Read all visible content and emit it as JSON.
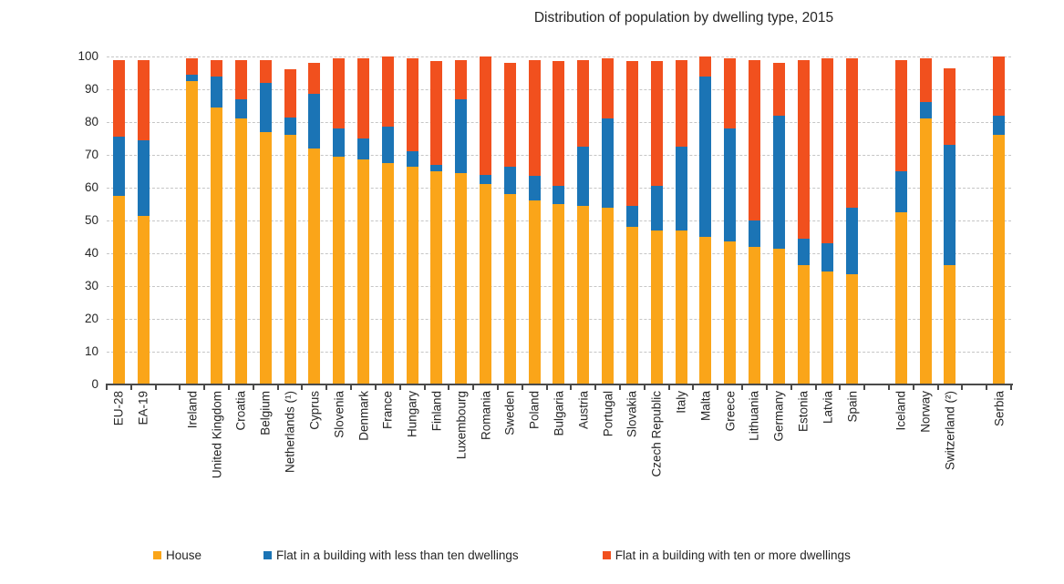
{
  "chart_data": {
    "type": "bar",
    "stacked": true,
    "title": "Distribution of population by dwelling type, 2015",
    "ylim": [
      0,
      100
    ],
    "yticks": [
      0,
      10,
      20,
      30,
      40,
      50,
      60,
      70,
      80,
      90,
      100
    ],
    "grid": "horizontal-dashed",
    "legend_position": "bottom",
    "unit": "% of population",
    "series_meta": [
      {
        "name": "House",
        "color": "#FAA519"
      },
      {
        "name": "Flat in a building with less than ten dwellings",
        "color": "#1B74B5"
      },
      {
        "name": "Flat in a building with ten or more dwellings",
        "color": "#F1501E"
      }
    ],
    "bars": [
      {
        "label": "EU-28",
        "gap_before": false,
        "values": [
          57.5,
          18.0,
          23.5
        ]
      },
      {
        "label": "EA-19",
        "gap_before": false,
        "values": [
          51.5,
          23.0,
          24.5
        ]
      },
      {
        "label": "Ireland",
        "gap_before": true,
        "values": [
          92.5,
          2.0,
          5.0
        ]
      },
      {
        "label": "United Kingdom",
        "gap_before": false,
        "values": [
          84.5,
          9.5,
          5.0
        ]
      },
      {
        "label": "Croatia",
        "gap_before": false,
        "values": [
          81.0,
          6.0,
          12.0
        ]
      },
      {
        "label": "Belgium",
        "gap_before": false,
        "values": [
          77.0,
          15.0,
          7.0
        ]
      },
      {
        "label": "Netherlands (¹)",
        "gap_before": false,
        "values": [
          76.0,
          5.5,
          14.5
        ]
      },
      {
        "label": "Cyprus",
        "gap_before": false,
        "values": [
          72.0,
          16.5,
          9.5
        ]
      },
      {
        "label": "Slovenia",
        "gap_before": false,
        "values": [
          69.5,
          8.5,
          21.5
        ]
      },
      {
        "label": "Denmark",
        "gap_before": false,
        "values": [
          68.5,
          6.5,
          24.5
        ]
      },
      {
        "label": "France",
        "gap_before": false,
        "values": [
          67.5,
          11.0,
          21.5
        ]
      },
      {
        "label": "Hungary",
        "gap_before": false,
        "values": [
          66.5,
          4.5,
          28.5
        ]
      },
      {
        "label": "Finland",
        "gap_before": false,
        "values": [
          65.0,
          2.0,
          31.5
        ]
      },
      {
        "label": "Luxembourg",
        "gap_before": false,
        "values": [
          64.5,
          22.5,
          12.0
        ]
      },
      {
        "label": "Romania",
        "gap_before": false,
        "values": [
          61.0,
          3.0,
          36.0
        ]
      },
      {
        "label": "Sweden",
        "gap_before": false,
        "values": [
          58.0,
          8.5,
          31.5
        ]
      },
      {
        "label": "Poland",
        "gap_before": false,
        "values": [
          56.0,
          7.5,
          35.5
        ]
      },
      {
        "label": "Bulgaria",
        "gap_before": false,
        "values": [
          55.0,
          5.5,
          38.0
        ]
      },
      {
        "label": "Austria",
        "gap_before": false,
        "values": [
          54.5,
          18.0,
          26.5
        ]
      },
      {
        "label": "Portugal",
        "gap_before": false,
        "values": [
          54.0,
          27.0,
          18.5
        ]
      },
      {
        "label": "Slovakia",
        "gap_before": false,
        "values": [
          48.0,
          6.5,
          44.0
        ]
      },
      {
        "label": "Czech Republic",
        "gap_before": false,
        "values": [
          47.0,
          13.5,
          38.0
        ]
      },
      {
        "label": "Italy",
        "gap_before": false,
        "values": [
          47.0,
          25.5,
          26.5
        ]
      },
      {
        "label": "Malta",
        "gap_before": false,
        "values": [
          45.0,
          49.0,
          6.0
        ]
      },
      {
        "label": "Greece",
        "gap_before": false,
        "values": [
          43.5,
          34.5,
          21.5
        ]
      },
      {
        "label": "Lithuania",
        "gap_before": false,
        "values": [
          42.0,
          8.0,
          49.0
        ]
      },
      {
        "label": "Germany",
        "gap_before": false,
        "values": [
          41.5,
          40.5,
          16.0
        ]
      },
      {
        "label": "Estonia",
        "gap_before": false,
        "values": [
          36.5,
          8.0,
          54.5
        ]
      },
      {
        "label": "Latvia",
        "gap_before": false,
        "values": [
          34.5,
          8.5,
          56.5
        ]
      },
      {
        "label": "Spain",
        "gap_before": false,
        "values": [
          33.5,
          20.5,
          45.5
        ]
      },
      {
        "label": "Iceland",
        "gap_before": true,
        "values": [
          52.5,
          12.5,
          34.0
        ]
      },
      {
        "label": "Norway",
        "gap_before": false,
        "values": [
          81.0,
          5.0,
          13.5
        ]
      },
      {
        "label": "Switzerland (²)",
        "gap_before": false,
        "values": [
          36.5,
          36.5,
          23.5
        ]
      },
      {
        "label": "Serbia",
        "gap_before": true,
        "values": [
          76.0,
          6.0,
          18.0
        ]
      }
    ]
  }
}
